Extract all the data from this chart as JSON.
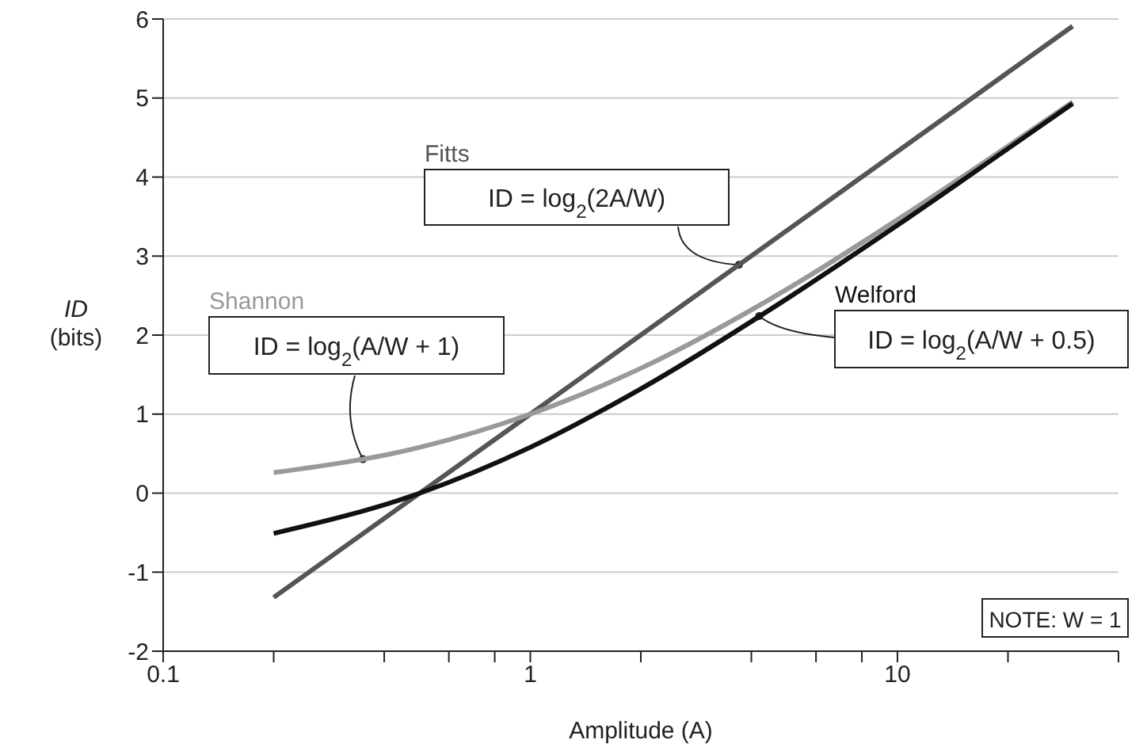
{
  "chart_data": {
    "type": "line",
    "xlabel": "Amplitude (A)",
    "ylabel": "ID\n(bits)",
    "log": "x",
    "grid": "y",
    "marker": "none",
    "line_style": "solid",
    "xlim": [
      0.1,
      40
    ],
    "xticks": [
      0.1,
      {
        "value": 0.2,
        "label": null
      },
      {
        "value": 0.4,
        "label": null
      },
      {
        "value": 0.6,
        "label": null
      },
      {
        "value": 0.8,
        "label": null
      },
      1,
      {
        "value": 2,
        "label": null
      },
      {
        "value": 4,
        "label": null
      },
      {
        "value": 6,
        "label": null
      },
      {
        "value": 8,
        "label": null
      },
      10,
      {
        "value": 20,
        "label": null
      },
      {
        "value": 40,
        "label": null
      }
    ],
    "ylim": [
      -2,
      6
    ],
    "yticks": [
      -2,
      -1,
      0,
      1,
      2,
      3,
      4,
      5,
      6
    ],
    "series": [
      {
        "name": "Fitts",
        "color": "#555555",
        "x": [
          0.2,
          1,
          30
        ],
        "values": [
          -1.32,
          1,
          5.91
        ]
      },
      {
        "name": "Shannon",
        "color": "#999999",
        "x": [
          0.2,
          0.5,
          1,
          2,
          5,
          10,
          20,
          30
        ],
        "values": [
          0.26,
          0.58,
          1,
          1.58,
          2.58,
          3.46,
          4.39,
          4.95
        ]
      },
      {
        "name": "Welford",
        "color": "#111111",
        "x": [
          0.2,
          0.5,
          1,
          2,
          5,
          10,
          20,
          30
        ],
        "values": [
          -0.51,
          0,
          0.58,
          1.32,
          2.46,
          3.39,
          4.36,
          4.93
        ]
      }
    ],
    "annotations": [
      {
        "text": "ID = log$_{2}$(2A/W)",
        "x": 3.7,
        "y": 2.89
      },
      {
        "text": "ID = log$_{2}$(A/W + 1)",
        "x": 0.35,
        "y": 0.43
      },
      {
        "text": "ID = log$_{2}$(A/W + 0.5)",
        "x": 4.2,
        "y": 2.24
      },
      "NOTE: W = 1"
    ]
  }
}
